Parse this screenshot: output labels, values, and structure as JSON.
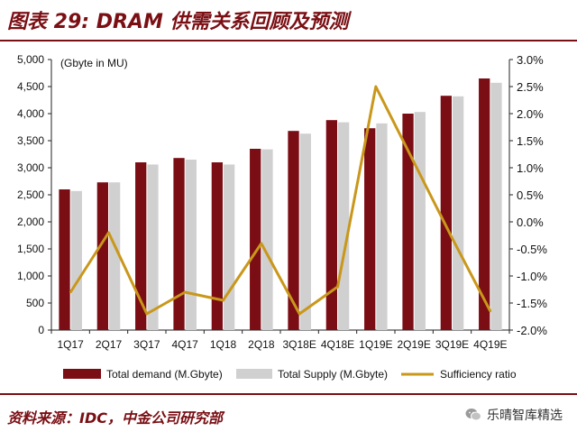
{
  "header": {
    "title": "图表 29: DRAM 供需关系回顾及预测"
  },
  "footer": {
    "source": "资料来源：IDC，中金公司研究部",
    "watermark": "乐晴智库精选",
    "watermark_icon": "wechat-icon"
  },
  "colors": {
    "demand": "#7b0d14",
    "supply": "#d0d0d0",
    "ratio": "#c9971a",
    "brand": "#7a0f14"
  },
  "chart_data": {
    "type": "bar",
    "title": "",
    "unit_label": "(Gbyte in MU)",
    "categories": [
      "1Q17",
      "2Q17",
      "3Q17",
      "4Q17",
      "1Q18",
      "2Q18",
      "3Q18E",
      "4Q18E",
      "1Q19E",
      "2Q19E",
      "3Q19E",
      "4Q19E"
    ],
    "series": [
      {
        "name": "Total demand (M.Gbyte)",
        "type": "bar",
        "axis": "left",
        "values": [
          2600,
          2730,
          3100,
          3180,
          3100,
          3350,
          3680,
          3880,
          3730,
          4000,
          4330,
          4650
        ]
      },
      {
        "name": "Total Supply (M.Gbyte)",
        "type": "bar",
        "axis": "left",
        "values": [
          2570,
          2730,
          3060,
          3150,
          3060,
          3340,
          3630,
          3840,
          3820,
          4030,
          4320,
          4570
        ]
      },
      {
        "name": "Sufficiency ratio",
        "type": "line",
        "axis": "right",
        "values": [
          -1.3,
          -0.2,
          -1.7,
          -1.3,
          -1.45,
          -0.4,
          -1.7,
          -1.2,
          2.5,
          1.1,
          -0.3,
          -1.65
        ]
      }
    ],
    "left_axis": {
      "ylim": [
        0,
        5000
      ],
      "ticks": [
        "0",
        "500",
        "1,000",
        "1,500",
        "2,000",
        "2,500",
        "3,000",
        "3,500",
        "4,000",
        "4,500",
        "5,000"
      ]
    },
    "right_axis": {
      "ylim": [
        -2.0,
        3.0
      ],
      "ticks": [
        "-2.0%",
        "-1.5%",
        "-1.0%",
        "-0.5%",
        "0.0%",
        "0.5%",
        "1.0%",
        "1.5%",
        "2.0%",
        "2.5%",
        "3.0%"
      ]
    },
    "legend_position": "bottom",
    "grid": false
  }
}
